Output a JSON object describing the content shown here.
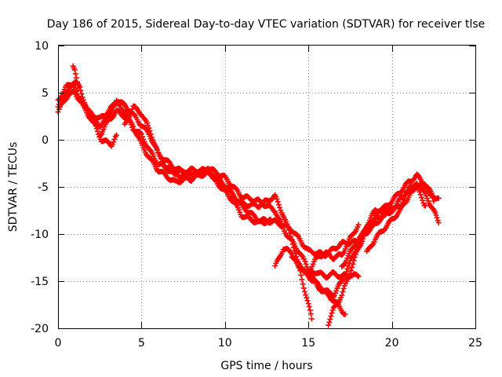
{
  "chart_data": {
    "type": "scatter",
    "title": "Day 186 of 2015, Sidereal Day-to-day VTEC variation (SDTVAR) for receiver tlse",
    "xlabel": "GPS time / hours",
    "ylabel": "SDTVAR / TECUs",
    "xlim": [
      0,
      25
    ],
    "ylim": [
      -20,
      10
    ],
    "xticks": [
      0,
      5,
      10,
      15,
      20,
      25
    ],
    "yticks": [
      -20,
      -15,
      -10,
      -5,
      0,
      5,
      10
    ],
    "grid": true,
    "marker": "plus",
    "color": "#ff0000",
    "series": [
      {
        "points": [
          [
            0,
            3.5
          ],
          [
            0.5,
            5.2
          ],
          [
            1,
            5.8
          ],
          [
            1.5,
            3.5
          ],
          [
            2,
            2.2
          ],
          [
            2.5,
            1.5
          ],
          [
            3,
            2.5
          ],
          [
            3.5,
            4.0
          ],
          [
            4,
            3.0
          ],
          [
            4.5,
            1.2
          ],
          [
            5,
            0.5
          ],
          [
            5.5,
            -1.2
          ],
          [
            6,
            -2.5
          ],
          [
            7,
            -3.6
          ],
          [
            8,
            -4.2
          ],
          [
            9,
            -3.2
          ],
          [
            10,
            -4.8
          ],
          [
            11,
            -7.0
          ],
          [
            12,
            -8.5
          ],
          [
            13,
            -8.7
          ],
          [
            14,
            -9.5
          ],
          [
            15,
            -11.8
          ],
          [
            16,
            -12.2
          ],
          [
            17,
            -11.0
          ],
          [
            18,
            -10.8
          ],
          [
            19,
            -8.5
          ],
          [
            20,
            -7.5
          ],
          [
            21,
            -5.2
          ],
          [
            22,
            -4.7
          ],
          [
            22.5,
            -6.5
          ]
        ]
      },
      {
        "points": [
          [
            0,
            4.2
          ],
          [
            0.5,
            5.6
          ],
          [
            1,
            6.2
          ],
          [
            1.3,
            5.5
          ],
          [
            1.8,
            3.0
          ],
          [
            2.5,
            2.2
          ],
          [
            3,
            3.0
          ],
          [
            3.6,
            4.2
          ],
          [
            4.2,
            3.3
          ],
          [
            4.8,
            2.0
          ],
          [
            5.5,
            0.5
          ],
          [
            6,
            -1.5
          ],
          [
            7,
            -3.0
          ],
          [
            8,
            -3.8
          ],
          [
            9,
            -3.0
          ],
          [
            10,
            -4.0
          ],
          [
            11,
            -6.0
          ],
          [
            12,
            -6.5
          ],
          [
            13,
            -7.5
          ],
          [
            13.5,
            -9.5
          ],
          [
            14.5,
            -12.0
          ],
          [
            15.5,
            -15.5
          ],
          [
            16.5,
            -17.0
          ],
          [
            17.2,
            -18.5
          ]
        ]
      },
      {
        "points": [
          [
            0,
            3.0
          ],
          [
            0.6,
            4.8
          ],
          [
            1,
            5.0
          ],
          [
            1.6,
            3.5
          ],
          [
            2.2,
            1.5
          ],
          [
            2.6,
            0.0
          ],
          [
            3.2,
            -0.5
          ],
          [
            3.5,
            0.5
          ]
        ]
      },
      {
        "points": [
          [
            0.9,
            8.0
          ],
          [
            1.0,
            7.5
          ],
          [
            1.1,
            6.5
          ],
          [
            1.2,
            5.5
          ]
        ]
      },
      {
        "points": [
          [
            2.5,
            0.5
          ],
          [
            3,
            2.0
          ],
          [
            3.5,
            3.0
          ],
          [
            4,
            2.5
          ],
          [
            4.5,
            1.5
          ],
          [
            5,
            -0.5
          ],
          [
            5.5,
            -2.0
          ],
          [
            6,
            -3.2
          ],
          [
            7,
            -4.5
          ],
          [
            8,
            -4.0
          ],
          [
            9,
            -3.5
          ],
          [
            10,
            -5.0
          ],
          [
            11,
            -6.8
          ],
          [
            12,
            -7.0
          ],
          [
            13,
            -6.0
          ],
          [
            13.5,
            -8.0
          ],
          [
            14,
            -10.5
          ],
          [
            14.5,
            -14.0
          ],
          [
            15,
            -17.5
          ],
          [
            15.2,
            -19.0
          ]
        ]
      },
      {
        "points": [
          [
            4,
            1.5
          ],
          [
            4.5,
            3.5
          ],
          [
            5,
            2.8
          ],
          [
            5.5,
            1.0
          ],
          [
            6,
            -1.5
          ],
          [
            6.5,
            -3.0
          ],
          [
            7,
            -3.5
          ],
          [
            8,
            -3.2
          ],
          [
            9,
            -3.3
          ],
          [
            9.5,
            -4.5
          ],
          [
            10,
            -5.5
          ],
          [
            10.5,
            -6.5
          ],
          [
            11,
            -8.0
          ],
          [
            12,
            -8.8
          ],
          [
            12.8,
            -8.6
          ]
        ]
      },
      {
        "points": [
          [
            13,
            -13.5
          ],
          [
            13.5,
            -11.5
          ],
          [
            14,
            -12.0
          ],
          [
            14.5,
            -13.5
          ],
          [
            15,
            -14.2
          ],
          [
            15.5,
            -14.0
          ],
          [
            16,
            -14.5
          ],
          [
            16.5,
            -14.2
          ],
          [
            17,
            -14.5
          ],
          [
            17.5,
            -14.3
          ],
          [
            18,
            -14.5
          ]
        ]
      },
      {
        "points": [
          [
            15,
            -14.0
          ],
          [
            15.5,
            -12.5
          ],
          [
            16,
            -12.0
          ],
          [
            16.5,
            -12.5
          ],
          [
            17,
            -12.2
          ],
          [
            17.5,
            -10.5
          ],
          [
            18,
            -9.0
          ]
        ]
      },
      {
        "points": [
          [
            16.2,
            -19.5
          ],
          [
            16.5,
            -18.0
          ],
          [
            17,
            -16.5
          ],
          [
            17.5,
            -14.0
          ],
          [
            18,
            -11.5
          ],
          [
            18.5,
            -9.5
          ],
          [
            19,
            -8.0
          ],
          [
            19.5,
            -7.5
          ],
          [
            20,
            -7.2
          ]
        ]
      },
      {
        "points": [
          [
            14,
            -12.5
          ],
          [
            15,
            -14.5
          ],
          [
            16,
            -16.0
          ],
          [
            16.5,
            -16.5
          ],
          [
            17,
            -15.0
          ],
          [
            17.5,
            -13.0
          ],
          [
            18,
            -11.0
          ],
          [
            18.5,
            -9.0
          ],
          [
            19,
            -7.5
          ],
          [
            19.5,
            -7.3
          ],
          [
            20,
            -6.5
          ],
          [
            20.5,
            -5.5
          ],
          [
            21,
            -4.5
          ],
          [
            21.5,
            -3.8
          ],
          [
            22,
            -4.8
          ],
          [
            22.5,
            -6.0
          ],
          [
            22.8,
            -6.2
          ]
        ]
      },
      {
        "points": [
          [
            18.5,
            -12.0
          ],
          [
            19,
            -10.5
          ],
          [
            19.5,
            -9.5
          ],
          [
            20,
            -8.5
          ],
          [
            20.5,
            -7.5
          ],
          [
            21,
            -6.0
          ],
          [
            21.5,
            -4.5
          ],
          [
            22,
            -5.8
          ],
          [
            22.5,
            -7.5
          ],
          [
            22.8,
            -8.8
          ]
        ]
      },
      {
        "points": [
          [
            17,
            -13.5
          ],
          [
            17.5,
            -12.0
          ],
          [
            18,
            -10.5
          ],
          [
            18.5,
            -9.8
          ],
          [
            19,
            -9.0
          ],
          [
            19.5,
            -8.0
          ],
          [
            20,
            -7.5
          ],
          [
            20.5,
            -7.0
          ],
          [
            21,
            -5.5
          ],
          [
            21.5,
            -5.0
          ],
          [
            22,
            -7.0
          ]
        ]
      }
    ]
  }
}
